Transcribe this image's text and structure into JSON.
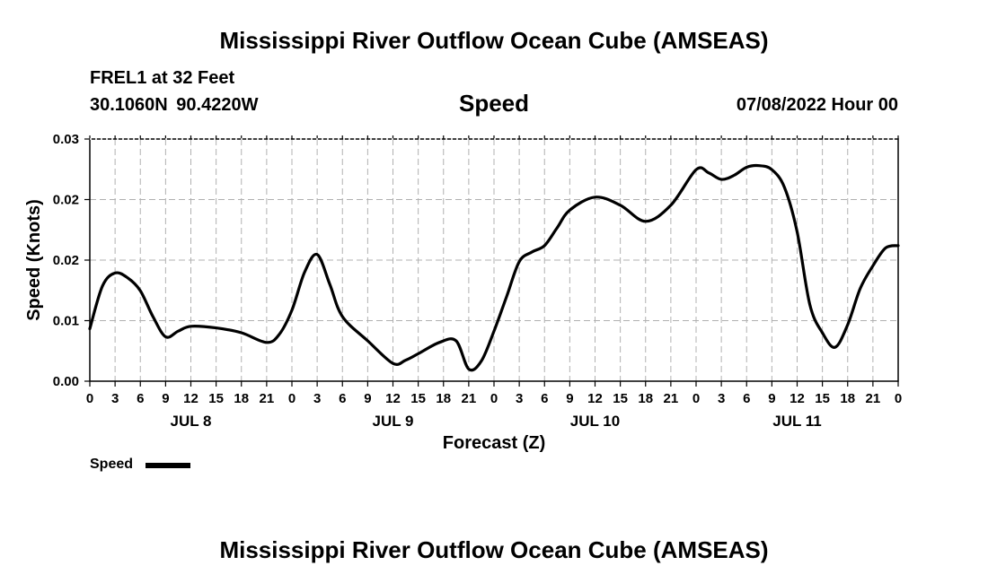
{
  "header": {
    "title": "Mississippi River Outflow Ocean Cube (AMSEAS)",
    "station": "FREL1 at 32 Feet",
    "coords": "30.1060N 90.4220W",
    "chart_title": "Speed",
    "date": "07/08/2022 Hour 00"
  },
  "footer": {
    "title": "Mississippi River Outflow Ocean Cube (AMSEAS)"
  },
  "legend": {
    "label": "Speed"
  },
  "chart_data": {
    "type": "line",
    "title": "Speed",
    "xlabel": "Forecast (Z)",
    "ylabel": "Speed (Knots)",
    "xlim": [
      0,
      96
    ],
    "ylim": [
      0,
      0.03
    ],
    "y_ticks": [
      0,
      0.0075,
      0.015,
      0.0225,
      0.03
    ],
    "y_tick_labels": [
      "0.00",
      "0.01",
      "0.02",
      "0.02",
      "0.03"
    ],
    "x_ticks": [
      0,
      3,
      6,
      9,
      12,
      15,
      18,
      21,
      24,
      27,
      30,
      33,
      36,
      39,
      42,
      45,
      48,
      51,
      54,
      57,
      60,
      63,
      66,
      69,
      72,
      75,
      78,
      81,
      84,
      87,
      90,
      93,
      96
    ],
    "x_tick_labels": [
      "0",
      "3",
      "6",
      "9",
      "12",
      "15",
      "18",
      "21",
      "0",
      "3",
      "6",
      "9",
      "12",
      "15",
      "18",
      "21",
      "0",
      "3",
      "6",
      "9",
      "12",
      "15",
      "18",
      "21",
      "0",
      "3",
      "6",
      "9",
      "12",
      "15",
      "18",
      "21",
      "0"
    ],
    "day_labels": [
      {
        "x": 12,
        "label": "JUL 8"
      },
      {
        "x": 36,
        "label": "JUL 9"
      },
      {
        "x": 60,
        "label": "JUL 10"
      },
      {
        "x": 84,
        "label": "JUL 11"
      }
    ],
    "grid": true,
    "series": [
      {
        "name": "Speed",
        "color": "#000000",
        "x": [
          0,
          1.5,
          3,
          4.5,
          6,
          7.5,
          9,
          10.5,
          12,
          15,
          18,
          21,
          22.5,
          24,
          25.5,
          27,
          28.5,
          30,
          33,
          36,
          37.5,
          39,
          41.5,
          43.5,
          45,
          46.5,
          48,
          49.5,
          51,
          52.5,
          54,
          55.5,
          57,
          60,
          63,
          66,
          69,
          72,
          73.5,
          75,
          76.5,
          78,
          79.5,
          81,
          82.5,
          84,
          85.5,
          87,
          88.5,
          90,
          91.5,
          93,
          94.5,
          96
        ],
        "values": [
          0.0065,
          0.0118,
          0.0134,
          0.0128,
          0.0112,
          0.008,
          0.0055,
          0.0062,
          0.0068,
          0.0066,
          0.006,
          0.0048,
          0.0058,
          0.0088,
          0.0135,
          0.0157,
          0.012,
          0.008,
          0.005,
          0.0022,
          0.0026,
          0.0034,
          0.0048,
          0.005,
          0.0015,
          0.0025,
          0.0062,
          0.0105,
          0.0148,
          0.016,
          0.0168,
          0.019,
          0.0212,
          0.0228,
          0.0218,
          0.0198,
          0.0218,
          0.0262,
          0.0258,
          0.025,
          0.0255,
          0.0265,
          0.0267,
          0.0262,
          0.024,
          0.0185,
          0.0095,
          0.006,
          0.0042,
          0.007,
          0.0115,
          0.0143,
          0.0165,
          0.0168
        ]
      }
    ]
  }
}
